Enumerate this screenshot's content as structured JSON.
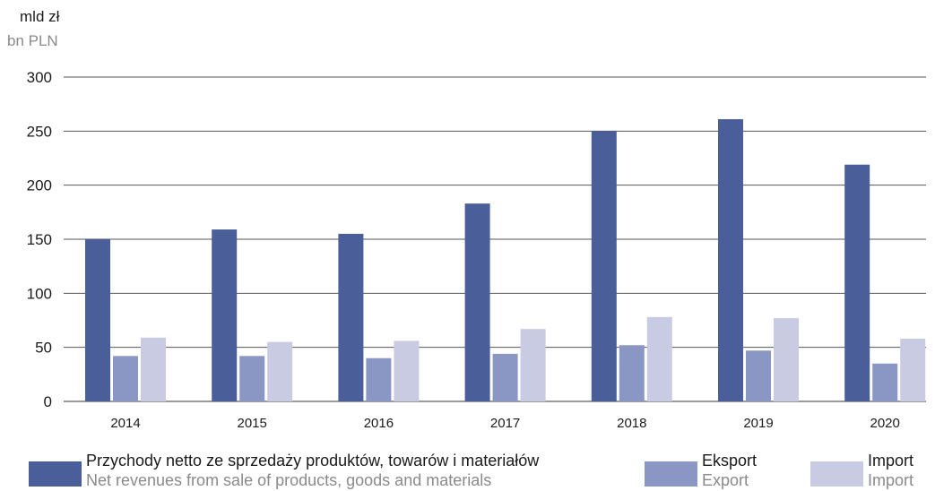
{
  "unit": {
    "pl": "mld zł",
    "en": "bn PLN"
  },
  "colors": {
    "revenue": "#4a5f99",
    "export": "#8a97c4",
    "import": "#c8cbe2",
    "grid": "#555555"
  },
  "legend": {
    "revenue": {
      "pl": "Przychody netto ze sprzedaży produktów, towarów i materiałów",
      "en": "Net revenues from sale of products, goods and materials"
    },
    "export": {
      "pl": "Eksport",
      "en": "Export"
    },
    "import": {
      "pl": "Import",
      "en": "Import"
    }
  },
  "chart_data": {
    "type": "bar",
    "categories": [
      "2014",
      "2015",
      "2016",
      "2017",
      "2018",
      "2019",
      "2020"
    ],
    "series": [
      {
        "name": "Przychody netto ze sprzedaży produktów, towarów i materiałów",
        "values": [
          150,
          159,
          155,
          183,
          250,
          261,
          219
        ]
      },
      {
        "name": "Eksport",
        "values": [
          42,
          42,
          40,
          44,
          52,
          47,
          35
        ]
      },
      {
        "name": "Import",
        "values": [
          59,
          55,
          56,
          67,
          78,
          77,
          58
        ]
      }
    ],
    "ylim": [
      0,
      300
    ],
    "yticks": [
      0,
      50,
      100,
      150,
      200,
      250,
      300
    ],
    "grid": true,
    "legend_position": "bottom"
  }
}
